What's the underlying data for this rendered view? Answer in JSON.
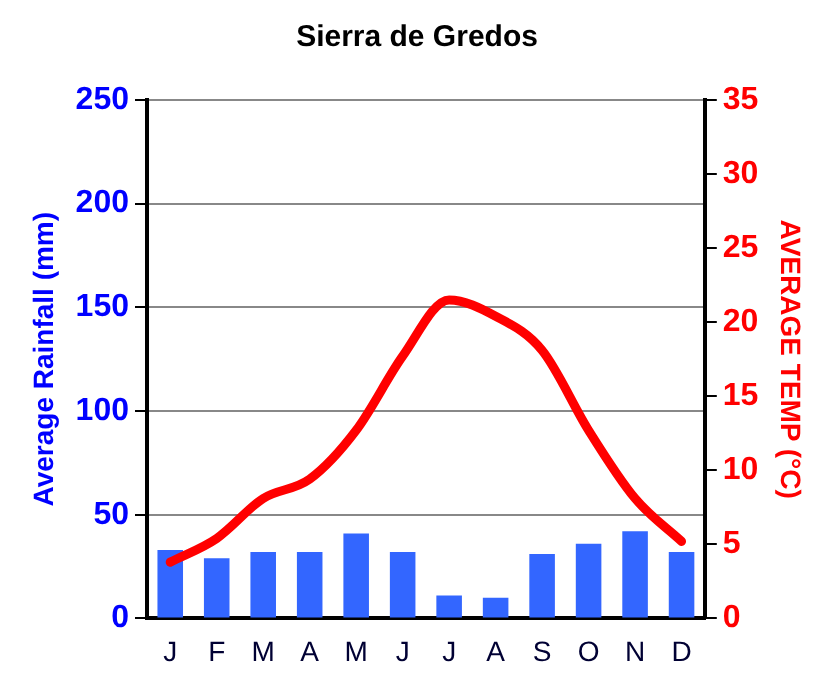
{
  "chart_data": {
    "type": "bar",
    "title": "Sierra de Gredos",
    "ylabel": "Average Rainfall (mm)",
    "y2label": "AVERAGE TEMP (°C)",
    "categories": [
      "J",
      "F",
      "M",
      "A",
      "M",
      "J",
      "J",
      "A",
      "S",
      "O",
      "N",
      "D"
    ],
    "series": [
      {
        "color": "#3366ff",
        "values": [
          33,
          29,
          32,
          32,
          41,
          32,
          11,
          10,
          31,
          36,
          42,
          32
        ]
      },
      {
        "type": "line",
        "axis": "y2",
        "color": "#ff0000",
        "values": [
          3.8,
          5.4,
          8.1,
          9.4,
          12.7,
          17.7,
          21.5,
          20.4,
          18.1,
          12.7,
          8.1,
          5.2
        ]
      }
    ],
    "ylim": [
      0,
      250
    ],
    "yticks": [
      0,
      50,
      100,
      150,
      200,
      250
    ],
    "y2lim": [
      0,
      35
    ],
    "y2ticks": [
      0,
      5,
      10,
      15,
      20,
      25,
      30,
      35
    ],
    "grid": "y",
    "legend": false,
    "marker": "none"
  }
}
